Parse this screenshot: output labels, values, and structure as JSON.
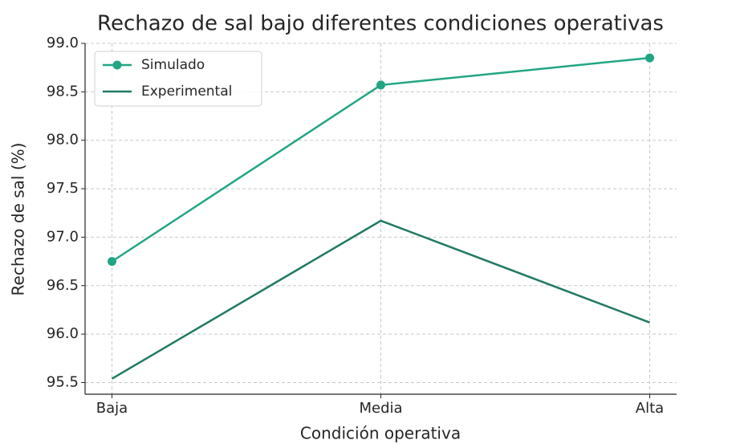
{
  "chart_data": {
    "type": "line",
    "title": "Rechazo de sal bajo diferentes condiciones operativas",
    "x_label": "Condición operativa",
    "y_label": "Rechazo de sal (%)",
    "categories": [
      "Baja",
      "Media",
      "Alta"
    ],
    "series": [
      {
        "name": "Simulado",
        "color": "#21a685",
        "marker": true,
        "values": [
          96.75,
          98.57,
          98.85
        ]
      },
      {
        "name": "Experimental",
        "color": "#1f7a64",
        "marker": false,
        "values": [
          95.54,
          97.17,
          96.12
        ]
      }
    ],
    "ylim": [
      95.38,
      99.0
    ],
    "yticks": [
      {
        "value": 95.5,
        "label": "95.5"
      },
      {
        "value": 96,
        "label": "96.0"
      },
      96.5,
      {
        "value": 97,
        "label": "97.0"
      },
      97.5,
      {
        "value": 98,
        "label": "98.0"
      },
      98.5,
      {
        "value": 99,
        "label": "99.0"
      }
    ],
    "grid": true,
    "legend": "upper left"
  }
}
